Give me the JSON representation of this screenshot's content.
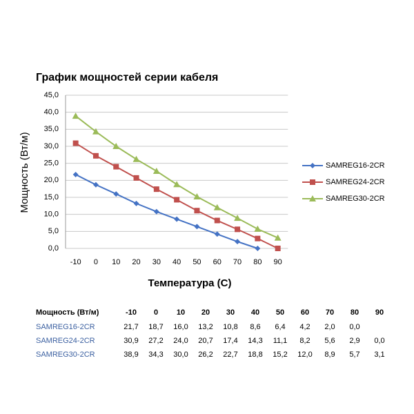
{
  "chart_data": {
    "type": "line",
    "title": "График мощностей серии кабеля",
    "x_label": "Температура (C)",
    "y_label": "Мощность (Вт/м)",
    "categories": [
      "-10",
      "0",
      "10",
      "20",
      "30",
      "40",
      "50",
      "60",
      "70",
      "80",
      "90"
    ],
    "series": [
      {
        "name": "SAMREG16-2CR",
        "color": "#4472c4",
        "marker": "diamond",
        "values": [
          21.7,
          18.7,
          16.0,
          13.2,
          10.8,
          8.6,
          6.4,
          4.2,
          2.0,
          0.0,
          null
        ]
      },
      {
        "name": "SAMREG24-2CR",
        "color": "#c0504d",
        "marker": "square",
        "values": [
          30.9,
          27.2,
          24.0,
          20.7,
          17.4,
          14.3,
          11.1,
          8.2,
          5.6,
          2.9,
          0.0
        ]
      },
      {
        "name": "SAMREG30-2CR",
        "color": "#9bbb59",
        "marker": "triangle",
        "values": [
          38.9,
          34.3,
          30.0,
          26.2,
          22.7,
          18.8,
          15.2,
          12.0,
          8.9,
          5.7,
          3.1
        ]
      }
    ],
    "ylim": [
      0,
      45
    ],
    "yticks": [
      {
        "value": 0,
        "label": "0,0"
      },
      {
        "value": 5,
        "label": "5,0"
      },
      {
        "value": 10,
        "label": "10,0"
      },
      {
        "value": 15,
        "label": "15,0"
      },
      {
        "value": 20,
        "label": "20,0"
      },
      {
        "value": 25,
        "label": "25,0"
      },
      {
        "value": 30,
        "label": "30,0"
      },
      {
        "value": 35,
        "label": "35,0"
      },
      {
        "value": 40,
        "label": "40,0"
      },
      {
        "value": 45,
        "label": "45,0"
      }
    ],
    "grid": true,
    "legend": "right"
  },
  "table": {
    "header": [
      "Мощность (Вт/м)",
      "-10",
      "0",
      "10",
      "20",
      "30",
      "40",
      "50",
      "60",
      "70",
      "80",
      "90"
    ],
    "rows": [
      [
        "SAMREG16-2CR",
        "21,7",
        "18,7",
        "16,0",
        "13,2",
        "10,8",
        "8,6",
        "6,4",
        "4,2",
        "2,0",
        "0,0",
        null
      ],
      [
        "SAMREG24-2CR",
        "30,9",
        "27,2",
        "24,0",
        "20,7",
        "17,4",
        "14,3",
        "11,1",
        "8,2",
        "5,6",
        "2,9",
        "0,0"
      ],
      [
        "SAMREG30-2CR",
        "38,9",
        "34,3",
        "30,0",
        "26,2",
        "22,7",
        "18,8",
        "15,2",
        "12,0",
        "8,9",
        "5,7",
        "3,1"
      ]
    ]
  }
}
